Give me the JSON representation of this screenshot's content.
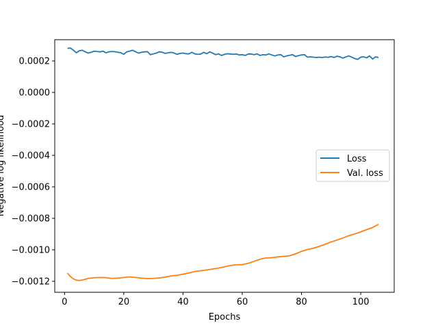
{
  "chart_data": {
    "type": "line",
    "title": "",
    "xlabel": "Epochs",
    "ylabel": "Negative log likelihood",
    "xlim": [
      -3.3,
      111.3
    ],
    "ylim": [
      -0.00127,
      0.000335
    ],
    "xticks": [
      0,
      20,
      40,
      60,
      80,
      100
    ],
    "xtick_labels": [
      "0",
      "20",
      "40",
      "60",
      "80",
      "100"
    ],
    "yticks": [
      0.0002,
      0.0,
      -0.0002,
      -0.0004,
      -0.0006,
      -0.0008,
      -0.001,
      -0.0012
    ],
    "ytick_labels": [
      "0.0002",
      "0.0000",
      "−0.0002",
      "−0.0004",
      "−0.0006",
      "−0.0008",
      "−0.0010",
      "−0.0012"
    ],
    "grid": false,
    "legend_position": "center-right",
    "series": [
      {
        "name": "Loss",
        "color": "#1f77b4",
        "x": [
          1,
          2,
          3,
          4,
          5,
          6,
          7,
          8,
          9,
          10,
          11,
          12,
          13,
          14,
          15,
          16,
          17,
          18,
          19,
          20,
          21,
          22,
          23,
          24,
          25,
          26,
          27,
          28,
          29,
          30,
          31,
          32,
          33,
          34,
          35,
          36,
          37,
          38,
          39,
          40,
          41,
          42,
          43,
          44,
          45,
          46,
          47,
          48,
          49,
          50,
          51,
          52,
          53,
          54,
          55,
          56,
          57,
          58,
          59,
          60,
          61,
          62,
          63,
          64,
          65,
          66,
          67,
          68,
          69,
          70,
          71,
          72,
          73,
          74,
          75,
          76,
          77,
          78,
          79,
          80,
          81,
          82,
          83,
          84,
          85,
          86,
          87,
          88,
          89,
          90,
          91,
          92,
          93,
          94,
          95,
          96,
          97,
          98,
          99,
          100,
          101,
          102,
          103,
          104,
          105,
          106
        ],
        "y": [
          0.00028,
          0.000282,
          0.000268,
          0.000252,
          0.000265,
          0.000268,
          0.000258,
          0.00025,
          0.000255,
          0.000262,
          0.00026,
          0.000258,
          0.000262,
          0.000252,
          0.000258,
          0.00026,
          0.000259,
          0.000255,
          0.000253,
          0.000242,
          0.000258,
          0.000262,
          0.000268,
          0.000258,
          0.00025,
          0.000255,
          0.000258,
          0.000259,
          0.00024,
          0.000245,
          0.00025,
          0.000258,
          0.000255,
          0.000248,
          0.000252,
          0.000255,
          0.00025,
          0.000242,
          0.000248,
          0.00025,
          0.000246,
          0.000245,
          0.000255,
          0.000245,
          0.000242,
          0.000244,
          0.000255,
          0.000246,
          0.000258,
          0.00025,
          0.00024,
          0.000245,
          0.000235,
          0.000242,
          0.000246,
          0.000244,
          0.000242,
          0.000244,
          0.000238,
          0.00024,
          0.000235,
          0.000244,
          0.000244,
          0.00024,
          0.000245,
          0.000235,
          0.00024,
          0.000238,
          0.000245,
          0.000238,
          0.000232,
          0.000238,
          0.00024,
          0.000226,
          0.000232,
          0.000236,
          0.00024,
          0.000228,
          0.000234,
          0.000238,
          0.00024,
          0.000224,
          0.000226,
          0.000224,
          0.000222,
          0.000224,
          0.000222,
          0.000225,
          0.000223,
          0.000228,
          0.000222,
          0.00023,
          0.000226,
          0.000218,
          0.000226,
          0.000232,
          0.000224,
          0.000215,
          0.00021,
          0.000224,
          0.000226,
          0.00022,
          0.000232,
          0.000212,
          0.000226,
          0.000222
        ]
      },
      {
        "name": "Val. loss",
        "color": "#ff7f0e",
        "x": [
          1,
          2,
          3,
          4,
          5,
          6,
          8,
          10,
          12,
          14,
          16,
          18,
          20,
          22,
          24,
          26,
          28,
          30,
          32,
          34,
          36,
          38,
          40,
          42,
          44,
          46,
          48,
          50,
          52,
          54,
          56,
          58,
          60,
          62,
          64,
          66,
          68,
          70,
          72,
          74,
          76,
          78,
          80,
          82,
          84,
          86,
          88,
          90,
          92,
          94,
          96,
          98,
          100,
          102,
          104,
          106
        ],
        "y": [
          -0.001148,
          -0.00117,
          -0.001185,
          -0.001193,
          -0.001195,
          -0.001192,
          -0.001182,
          -0.001177,
          -0.001176,
          -0.001177,
          -0.001182,
          -0.00118,
          -0.001176,
          -0.001172,
          -0.001176,
          -0.00118,
          -0.001183,
          -0.001182,
          -0.001179,
          -0.001173,
          -0.001166,
          -0.001162,
          -0.001155,
          -0.001147,
          -0.001138,
          -0.001133,
          -0.001128,
          -0.001122,
          -0.001116,
          -0.001108,
          -0.0011,
          -0.001095,
          -0.001094,
          -0.001086,
          -0.001073,
          -0.00106,
          -0.001052,
          -0.00105,
          -0.001045,
          -0.001042,
          -0.001038,
          -0.001026,
          -0.00101,
          -0.000998,
          -0.00099,
          -0.000978,
          -0.000965,
          -0.00095,
          -0.000938,
          -0.000925,
          -0.00091,
          -0.000899,
          -0.000886,
          -0.000872,
          -0.000858,
          -0.000838
        ]
      }
    ]
  }
}
